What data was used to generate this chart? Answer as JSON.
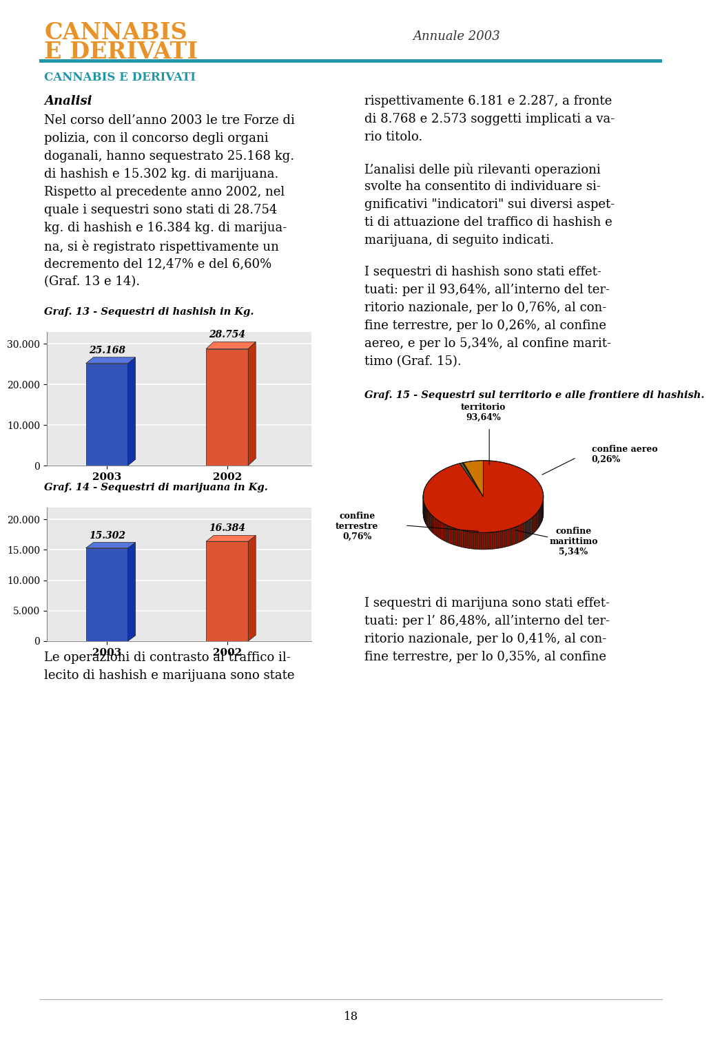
{
  "title_line1": "CANNABIS",
  "title_line2": "E DERIVATI",
  "title_color": "#E8922A",
  "annuale_text": "Annuale 2003",
  "header_line_color": "#2196A8",
  "section_title": "CANNABIS E DERIVATI",
  "section_title_color": "#2196A8",
  "left_col_lines": [
    "Nel corso dell’anno 2003 le tre Forze di",
    "polizia, con il concorso degli organi",
    "doganali, hanno sequestrato 25.168 kg.",
    "di hashish e 15.302 kg. di marijuana.",
    "Rispetto al precedente anno 2002, nel",
    "quale i sequestri sono stati di 28.754",
    "kg. di hashish e 16.384 kg. di marijua-",
    "na, si è registrato rispettivamente un",
    "decremento del 12,47% e del 6,60%",
    "(Graf. 13 e 14)."
  ],
  "right_col_lines_1": [
    "rispettivamente 6.181 e 2.287, a fronte",
    "di 8.768 e 2.573 soggetti implicati a va-",
    "rio titolo."
  ],
  "right_col_lines_2": [
    "L’analisi delle più rilevanti operazioni",
    "svolte ha consentito di individuare si-",
    "gnificativi \"indicatori\" sui diversi aspet-",
    "ti di attuazione del traffico di hashish e",
    "marijuana, di seguito indicati."
  ],
  "right_col_lines_3": [
    "I sequestri di hashish sono stati effet-",
    "tuati: per il 93,64%, all’interno del ter-",
    "ritorio nazionale, per lo 0,76%, al con-",
    "fine terrestre, per lo 0,26%, al confine",
    "aereo, e per lo 5,34%, al confine marit-",
    "timo (Graf. 15)."
  ],
  "right_col_lines_4": [
    "I sequestri di marijuna sono stati effet-",
    "tuati: per l’ 86,48%, all’interno del ter-",
    "ritorio nazionale, per lo 0,41%, al con-",
    "fine terrestre, per lo 0,35%, al confine"
  ],
  "graf13_title": "Graf. 13 - Sequestri di hashish in Kg.",
  "graf13_categories": [
    "2003",
    "2002"
  ],
  "graf13_values": [
    25168,
    28754
  ],
  "graf13_bar_colors": [
    "#2244AA",
    "#CC4422"
  ],
  "graf13_bar_face_colors": [
    "#3366CC",
    "#DD6644"
  ],
  "graf13_labels": [
    "25.168",
    "28.754"
  ],
  "graf13_yticks": [
    0,
    10000,
    20000,
    30000
  ],
  "graf13_ytick_labels": [
    "0",
    "10.000",
    "20.000",
    "30.000"
  ],
  "graf13_ylim": [
    0,
    33000
  ],
  "graf14_title": "Graf. 14 - Sequestri di marijuana in Kg.",
  "graf14_categories": [
    "2003",
    "2002"
  ],
  "graf14_values": [
    15302,
    16384
  ],
  "graf14_bar_colors": [
    "#2244AA",
    "#CC4422"
  ],
  "graf14_labels": [
    "15.302",
    "16.384"
  ],
  "graf14_yticks": [
    0,
    5000,
    10000,
    15000,
    20000
  ],
  "graf14_ytick_labels": [
    "0",
    "5.000",
    "10.000",
    "15.000",
    "20.000"
  ],
  "graf14_ylim": [
    0,
    22000
  ],
  "bottom_left_lines": [
    "Le operazioni di contrasto al traffico il-",
    "lecito di hashish e marijuana sono state"
  ],
  "graf15_title": "Graf. 15 - Sequestri sul territorio e alle frontiere di hashish.",
  "pie_values": [
    93.64,
    0.76,
    0.26,
    5.34
  ],
  "pie_colors": [
    "#CC2200",
    "#446644",
    "#88AA44",
    "#CC7700"
  ],
  "pie_label_territorio": "territorio\n93,64%",
  "pie_label_terrestre": "confine\nterrestre\n0,76%",
  "pie_label_aereo": "confine aereo\n0,26%",
  "pie_label_marittimo": "confine\nmarittimo\n5,34%",
  "footer_text": "18",
  "bg_color": "#FFFFFF",
  "text_color": "#000000"
}
